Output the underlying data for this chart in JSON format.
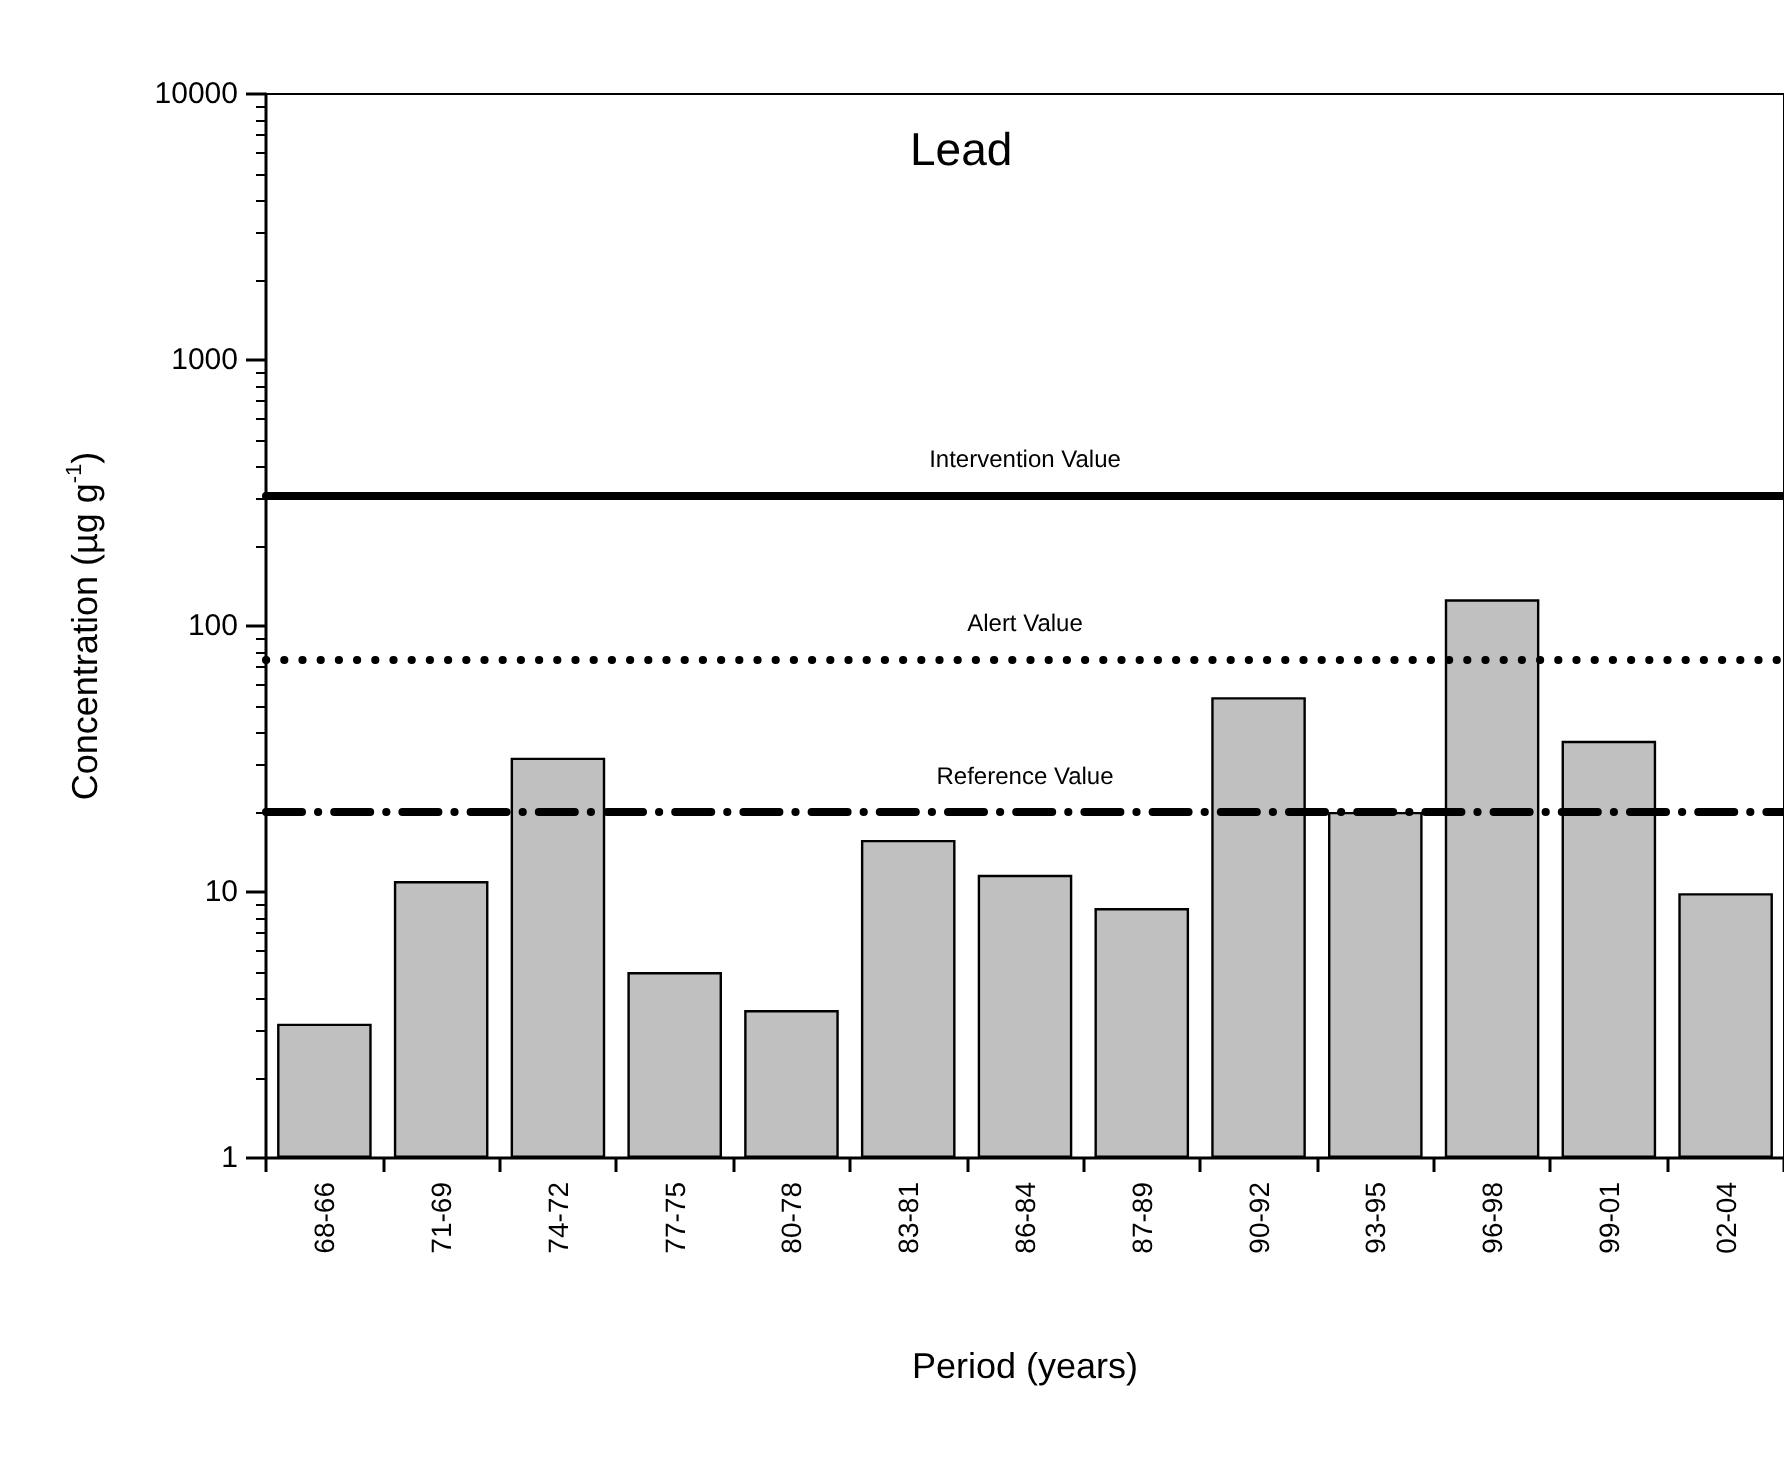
{
  "chart_data": {
    "type": "bar",
    "title": "Lead",
    "xlabel": "Period (years)",
    "ylabel": "Concentration (µg g$^{-1}$)",
    "categories": [
      "68-66",
      "71-69",
      "74-72",
      "77-75",
      "80-78",
      "83-81",
      "86-84",
      "87-89",
      "90-92",
      "93-95",
      "96-98",
      "99-01",
      "02-04"
    ],
    "values": [
      3.2,
      11,
      32,
      5.0,
      3.6,
      15.7,
      11.6,
      8.7,
      54,
      20,
      126,
      37,
      9.9
    ],
    "color": "#c0c0c0",
    "log": true,
    "ylim": [
      1,
      10000
    ],
    "yticks": [
      1,
      10,
      100,
      1000,
      10000
    ],
    "grid": false,
    "ref_lines": [
      {
        "axis": "y",
        "value": 310,
        "label": "Intervention Value",
        "color": "#000000",
        "line_style": "solid"
      },
      {
        "axis": "y",
        "value": 75,
        "label": "Alert Value",
        "color": "#000000",
        "line_style": "dotted"
      },
      {
        "axis": "y",
        "value": 20,
        "label": "Reference Value",
        "color": "#000000",
        "line_style": "dashed"
      }
    ]
  }
}
